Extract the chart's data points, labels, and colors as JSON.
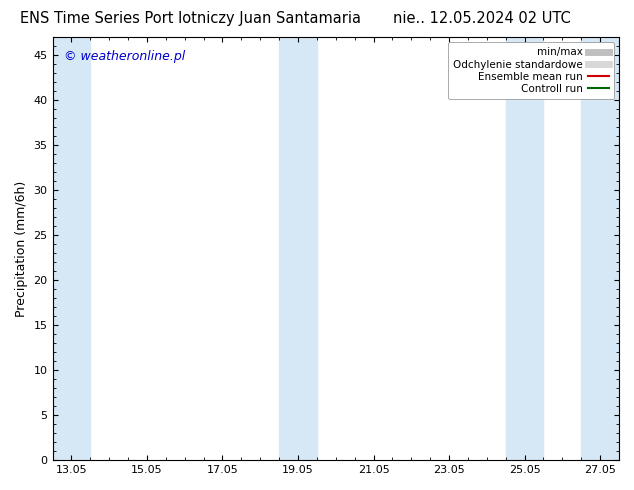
{
  "title_left": "ENS Time Series Port lotniczy Juan Santamaria",
  "title_right": "nie.. 12.05.2024 02 UTC",
  "ylabel": "Precipitation (mm/6h)",
  "ylim": [
    0,
    47
  ],
  "yticks": [
    0,
    5,
    10,
    15,
    20,
    25,
    30,
    35,
    40,
    45
  ],
  "xlim_start": 12.5,
  "xlim_end": 27.5,
  "xtick_labels": [
    "13.05",
    "15.05",
    "17.05",
    "19.05",
    "21.05",
    "23.05",
    "25.05",
    "27.05"
  ],
  "xtick_positions": [
    13,
    15,
    17,
    19,
    21,
    23,
    25,
    27
  ],
  "shaded_bands": [
    {
      "x_start": 12.5,
      "x_end": 13.5
    },
    {
      "x_start": 18.5,
      "x_end": 19.5
    },
    {
      "x_start": 24.5,
      "x_end": 25.5
    },
    {
      "x_start": 26.5,
      "x_end": 27.5
    }
  ],
  "band_color": "#d6e8f5",
  "background_color": "#ffffff",
  "watermark_text": "© weatheronline.pl",
  "watermark_color": "#0000cc",
  "legend_items": [
    {
      "label": "min/max",
      "color": "#c0c0c0",
      "lw": 5
    },
    {
      "label": "Odchylenie standardowe",
      "color": "#d8d8d8",
      "lw": 5
    },
    {
      "label": "Ensemble mean run",
      "color": "#cc0000",
      "lw": 1.5
    },
    {
      "label": "Controll run",
      "color": "#006600",
      "lw": 1.5
    }
  ],
  "title_fontsize": 10.5,
  "ylabel_fontsize": 9,
  "tick_fontsize": 8,
  "watermark_fontsize": 9,
  "legend_fontsize": 7.5
}
